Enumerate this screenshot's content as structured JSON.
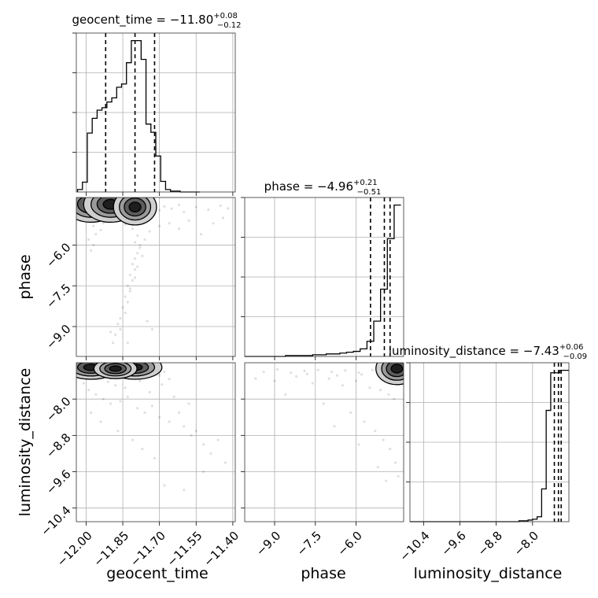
{
  "chart_data": {
    "type": "corner",
    "parameters": [
      "geocent_time",
      "phase",
      "luminosity_distance"
    ],
    "axis_labels": {
      "geocent_time": "geocent_time",
      "phase": "phase",
      "luminosity_distance": "luminosity_distance"
    },
    "ranges": {
      "geocent_time": [
        -12.04,
        -11.39
      ],
      "phase": [
        -10.1,
        -4.25
      ],
      "luminosity_distance": [
        -10.7,
        -7.2
      ]
    },
    "ticks": {
      "geocent_time": [
        -12.0,
        -11.85,
        -11.7,
        -11.55,
        -11.4
      ],
      "phase": [
        -9.0,
        -7.5,
        -6.0
      ],
      "luminosity_distance": [
        -10.4,
        -9.6,
        -8.8,
        -8.0
      ]
    },
    "tick_labels": {
      "geocent_time": [
        "−12.00",
        "−11.85",
        "−11.70",
        "−11.55",
        "−11.40"
      ],
      "phase": [
        "−9.0",
        "−7.5",
        "−6.0"
      ],
      "luminosity_distance": [
        "−10.4",
        "−9.6",
        "−8.8",
        "−8.0"
      ]
    },
    "titles": [
      {
        "param": "geocent_time",
        "prefix": "geocent_time = −11.80",
        "plus": "+0.08",
        "minus": "−0.12"
      },
      {
        "param": "phase",
        "prefix": "phase = −4.96",
        "plus": "+0.21",
        "minus": "−0.51"
      },
      {
        "param": "luminosity_distance",
        "prefix": "luminosity_distance = −7.43",
        "plus": "+0.06",
        "minus": "−0.09"
      }
    ],
    "marginals": {
      "geocent_time": {
        "edges": [
          -12.035,
          -12.015,
          -11.995,
          -11.975,
          -11.955,
          -11.935,
          -11.915,
          -11.895,
          -11.875,
          -11.855,
          -11.835,
          -11.815,
          -11.795,
          -11.775,
          -11.755,
          -11.735,
          -11.715,
          -11.695,
          -11.675,
          -11.655,
          -11.635,
          -11.615,
          -11.595,
          -11.575,
          -11.555,
          -11.535
        ],
        "counts": [
          3,
          12,
          72,
          90,
          100,
          103,
          110,
          115,
          128,
          132,
          158,
          185,
          185,
          162,
          83,
          73,
          44,
          13,
          3,
          1,
          1,
          0,
          0,
          0,
          0
        ]
      },
      "phase": {
        "edges": [
          -10.1,
          -9.85,
          -9.6,
          -9.35,
          -9.1,
          -8.85,
          -8.6,
          -8.35,
          -8.1,
          -7.85,
          -7.6,
          -7.35,
          -7.1,
          -6.85,
          -6.6,
          -6.35,
          -6.1,
          -5.85,
          -5.6,
          -5.35,
          -5.1,
          -4.85,
          -4.6,
          -4.35
        ],
        "counts": [
          0,
          0,
          0,
          0,
          0,
          0,
          1,
          1,
          1,
          1,
          2,
          2,
          3,
          3,
          4,
          5,
          6,
          9,
          18,
          42,
          80,
          140,
          180
        ]
      },
      "luminosity_distance": {
        "edges": [
          -10.7,
          -10.6,
          -10.5,
          -10.4,
          -10.3,
          -10.2,
          -10.1,
          -10.0,
          -9.9,
          -9.8,
          -9.7,
          -9.6,
          -9.5,
          -9.4,
          -9.3,
          -9.2,
          -9.1,
          -9.0,
          -8.9,
          -8.8,
          -8.7,
          -8.6,
          -8.5,
          -8.4,
          -8.3,
          -8.2,
          -8.1,
          -8.0,
          -7.9,
          -7.8,
          -7.7,
          -7.6,
          -7.5,
          -7.4,
          -7.3,
          -7.2
        ],
        "counts": [
          0,
          0,
          0,
          0,
          0,
          0,
          0,
          0,
          0,
          0,
          0,
          0,
          0,
          0,
          0,
          0,
          0,
          0,
          0,
          0,
          0,
          0,
          0,
          0,
          1,
          1,
          2,
          3,
          6,
          40,
          136,
          182,
          182,
          185,
          185
        ]
      }
    },
    "quantiles": {
      "geocent_time": [
        -11.92,
        -11.8,
        -11.72
      ],
      "phase": [
        -5.47,
        -4.96,
        -4.75
      ],
      "luminosity_distance": [
        -7.52,
        -7.43,
        -7.37
      ]
    },
    "scatter": {
      "geocent_time|phase": [
        [
          -11.98,
          -4.55
        ],
        [
          -11.95,
          -4.65
        ],
        [
          -11.92,
          -4.5
        ],
        [
          -11.9,
          -4.75
        ],
        [
          -11.88,
          -4.6
        ],
        [
          -11.85,
          -4.45
        ],
        [
          -11.82,
          -4.7
        ],
        [
          -11.8,
          -4.55
        ],
        [
          -11.78,
          -4.8
        ],
        [
          -11.75,
          -4.62
        ],
        [
          -11.72,
          -4.48
        ],
        [
          -11.7,
          -4.72
        ],
        [
          -11.68,
          -4.58
        ],
        [
          -11.65,
          -4.66
        ],
        [
          -11.62,
          -4.52
        ],
        [
          -11.6,
          -4.78
        ],
        [
          -11.55,
          -4.6
        ],
        [
          -11.5,
          -4.7
        ],
        [
          -11.45,
          -4.55
        ],
        [
          -11.42,
          -4.65
        ],
        [
          -12.0,
          -5.1
        ],
        [
          -11.97,
          -5.3
        ],
        [
          -11.93,
          -5.2
        ],
        [
          -11.96,
          -5.6
        ],
        [
          -11.99,
          -5.8
        ],
        [
          -11.94,
          -5.45
        ],
        [
          -11.91,
          -5.15
        ],
        [
          -11.87,
          -5.05
        ],
        [
          -11.84,
          -5.25
        ],
        [
          -11.81,
          -5.4
        ],
        [
          -11.79,
          -5.65
        ],
        [
          -11.8,
          -5.9
        ],
        [
          -11.78,
          -6.1
        ],
        [
          -11.79,
          -6.3
        ],
        [
          -11.8,
          -6.5
        ],
        [
          -11.81,
          -6.7
        ],
        [
          -11.8,
          -6.9
        ],
        [
          -11.82,
          -7.1
        ],
        [
          -11.81,
          -7.3
        ],
        [
          -11.83,
          -7.5
        ],
        [
          -11.82,
          -7.7
        ],
        [
          -11.84,
          -7.9
        ],
        [
          -11.83,
          -8.1
        ],
        [
          -11.85,
          -8.3
        ],
        [
          -11.84,
          -8.5
        ],
        [
          -11.86,
          -8.7
        ],
        [
          -11.87,
          -8.9
        ],
        [
          -11.86,
          -9.1
        ],
        [
          -11.88,
          -9.3
        ],
        [
          -11.89,
          -9.6
        ],
        [
          -11.78,
          -6.0
        ],
        [
          -11.77,
          -6.4
        ],
        [
          -11.79,
          -6.8
        ],
        [
          -11.8,
          -7.2
        ],
        [
          -11.82,
          -7.6
        ],
        [
          -11.76,
          -5.8
        ],
        [
          -11.74,
          -5.5
        ],
        [
          -11.7,
          -5.3
        ],
        [
          -11.66,
          -5.2
        ],
        [
          -11.62,
          -5.4
        ],
        [
          -11.58,
          -5.1
        ],
        [
          -11.53,
          -5.6
        ],
        [
          -11.48,
          -5.2
        ],
        [
          -11.44,
          -5.0
        ],
        [
          -11.98,
          -6.2
        ],
        [
          -11.97,
          -6.0
        ],
        [
          -11.73,
          -9.1
        ],
        [
          -11.83,
          -9.6
        ],
        [
          -11.9,
          -9.2
        ],
        [
          -11.75,
          -8.8
        ]
      ],
      "geocent_time|luminosity_distance": [
        [
          -11.98,
          -7.35
        ],
        [
          -11.95,
          -7.45
        ],
        [
          -11.92,
          -7.3
        ],
        [
          -11.9,
          -7.55
        ],
        [
          -11.88,
          -7.4
        ],
        [
          -11.85,
          -7.35
        ],
        [
          -11.82,
          -7.5
        ],
        [
          -11.8,
          -7.38
        ],
        [
          -11.78,
          -7.6
        ],
        [
          -11.75,
          -7.42
        ],
        [
          -11.72,
          -7.33
        ],
        [
          -11.7,
          -7.48
        ],
        [
          -11.68,
          -7.4
        ],
        [
          -11.66,
          -7.56
        ],
        [
          -12.01,
          -7.65
        ],
        [
          -11.99,
          -7.8
        ],
        [
          -11.96,
          -7.9
        ],
        [
          -11.93,
          -8.0
        ],
        [
          -11.9,
          -8.1
        ],
        [
          -11.86,
          -8.05
        ],
        [
          -11.83,
          -7.95
        ],
        [
          -11.79,
          -8.2
        ],
        [
          -11.76,
          -8.3
        ],
        [
          -11.73,
          -8.15
        ],
        [
          -11.7,
          -8.4
        ],
        [
          -11.66,
          -8.5
        ],
        [
          -11.62,
          -8.3
        ],
        [
          -11.6,
          -8.6
        ],
        [
          -11.57,
          -8.8
        ],
        [
          -11.55,
          -8.7
        ],
        [
          -11.52,
          -9.0
        ],
        [
          -11.49,
          -9.2
        ],
        [
          -11.46,
          -8.9
        ],
        [
          -11.43,
          -9.4
        ],
        [
          -11.98,
          -8.3
        ],
        [
          -11.94,
          -8.5
        ],
        [
          -11.87,
          -8.7
        ],
        [
          -11.81,
          -8.9
        ],
        [
          -11.77,
          -9.1
        ],
        [
          -11.72,
          -9.3
        ],
        [
          -11.68,
          -9.9
        ],
        [
          -11.6,
          -10.0
        ],
        [
          -11.52,
          -9.6
        ],
        [
          -11.88,
          -7.7
        ],
        [
          -11.84,
          -7.75
        ],
        [
          -11.74,
          -7.85
        ],
        [
          -11.64,
          -7.95
        ],
        [
          -11.58,
          -8.1
        ],
        [
          -11.91,
          -7.62
        ],
        [
          -11.69,
          -7.68
        ]
      ],
      "phase|luminosity_distance": [
        [
          -9.4,
          -7.4
        ],
        [
          -8.9,
          -7.35
        ],
        [
          -8.4,
          -7.42
        ],
        [
          -7.9,
          -7.38
        ],
        [
          -7.4,
          -7.36
        ],
        [
          -6.9,
          -7.4
        ],
        [
          -6.4,
          -7.37
        ],
        [
          -5.9,
          -7.42
        ],
        [
          -5.4,
          -7.36
        ],
        [
          -5.0,
          -7.4
        ],
        [
          -4.7,
          -7.38
        ],
        [
          -4.5,
          -7.42
        ],
        [
          -9.7,
          -7.55
        ],
        [
          -9.0,
          -7.6
        ],
        [
          -8.2,
          -7.5
        ],
        [
          -7.6,
          -7.65
        ],
        [
          -7.0,
          -7.55
        ],
        [
          -6.5,
          -7.7
        ],
        [
          -6.0,
          -7.6
        ],
        [
          -5.5,
          -7.75
        ],
        [
          -5.1,
          -7.8
        ],
        [
          -4.8,
          -7.9
        ],
        [
          -4.6,
          -8.0
        ],
        [
          -8.6,
          -7.9
        ],
        [
          -7.2,
          -8.1
        ],
        [
          -6.2,
          -8.3
        ],
        [
          -5.7,
          -8.5
        ],
        [
          -5.3,
          -8.7
        ],
        [
          -5.0,
          -8.9
        ],
        [
          -4.75,
          -9.1
        ],
        [
          -4.55,
          -9.4
        ],
        [
          -4.45,
          -9.7
        ],
        [
          -6.8,
          -8.6
        ],
        [
          -5.9,
          -9.0
        ],
        [
          -5.2,
          -9.5
        ],
        [
          -4.9,
          -9.8
        ],
        [
          -7.8,
          -7.45
        ],
        [
          -6.7,
          -7.48
        ],
        [
          -5.8,
          -7.46
        ],
        [
          -4.9,
          -7.52
        ]
      ]
    },
    "density_peaks": {
      "geocent_time|phase": [
        {
          "x": -11.98,
          "y": -4.5,
          "w": 0.05,
          "h": 0.3
        },
        {
          "x": -11.9,
          "y": -4.5,
          "w": 0.05,
          "h": 0.3
        },
        {
          "x": -11.8,
          "y": -4.6,
          "w": 0.04,
          "h": 0.3
        }
      ],
      "geocent_time|luminosity_distance": [
        {
          "x": -11.98,
          "y": -7.3,
          "w": 0.05,
          "h": 0.12
        },
        {
          "x": -11.8,
          "y": -7.3,
          "w": 0.05,
          "h": 0.12
        },
        {
          "x": -11.88,
          "y": -7.33,
          "w": 0.04,
          "h": 0.1
        }
      ],
      "phase|luminosity_distance": [
        {
          "x": -4.5,
          "y": -7.33,
          "w": 0.35,
          "h": 0.16
        }
      ]
    },
    "grid": true
  }
}
